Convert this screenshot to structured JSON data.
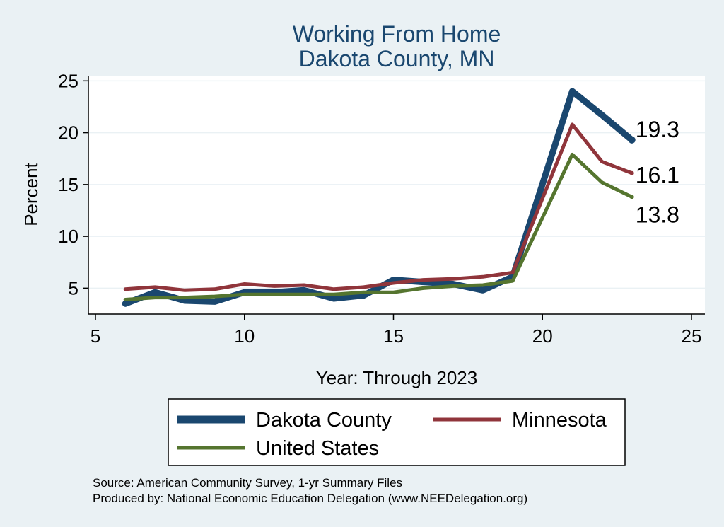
{
  "chart_data": {
    "type": "line",
    "title": [
      "Working From Home",
      "Dakota County, MN"
    ],
    "xlabel": "Year: Through 2023",
    "ylabel": "Percent",
    "xlim": [
      5,
      25
    ],
    "ylim": [
      2.5,
      25.5
    ],
    "xticks": [
      5,
      10,
      15,
      20,
      25
    ],
    "yticks": [
      5,
      10,
      15,
      20,
      25
    ],
    "grid": true,
    "legend_position": "bottom",
    "x": [
      6,
      7,
      8,
      9,
      10,
      11,
      12,
      13,
      14,
      15,
      16,
      17,
      18,
      19,
      21,
      22,
      23
    ],
    "series": [
      {
        "name": "Dakota County",
        "color": "#1a476f",
        "values": [
          3.5,
          4.6,
          3.8,
          3.7,
          4.6,
          4.6,
          4.8,
          4.0,
          4.3,
          5.8,
          5.6,
          5.4,
          4.8,
          6.1,
          24.0,
          21.7,
          19.3
        ],
        "end_label": "19.3"
      },
      {
        "name": "Minnesota",
        "color": "#90353b",
        "values": [
          4.9,
          5.1,
          4.8,
          4.9,
          5.4,
          5.2,
          5.3,
          4.9,
          5.1,
          5.5,
          5.8,
          5.9,
          6.1,
          6.5,
          20.8,
          17.2,
          16.1
        ],
        "end_label": "16.1"
      },
      {
        "name": "United States",
        "color": "#55752f",
        "values": [
          3.9,
          4.1,
          4.1,
          4.2,
          4.4,
          4.4,
          4.4,
          4.4,
          4.6,
          4.6,
          5.0,
          5.2,
          5.3,
          5.7,
          17.9,
          15.2,
          13.8
        ],
        "end_label": "13.8"
      }
    ],
    "notes": [
      "Source: American Community Survey, 1-yr Summary Files",
      "Produced by: National Economic Education Delegation (www.NEEDelegation.org)"
    ]
  }
}
